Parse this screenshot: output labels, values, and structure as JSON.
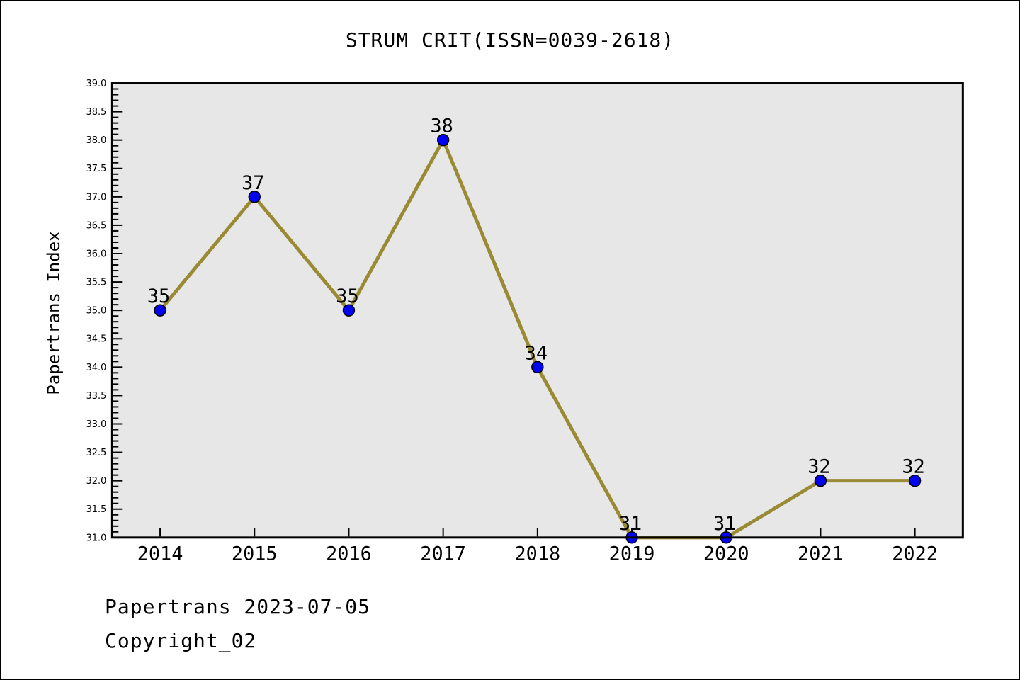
{
  "title": "STRUM CRIT(ISSN=0039-2618)",
  "footer": {
    "line1": "Papertrans 2023-07-05",
    "line2": "Copyright_02"
  },
  "chart_data": {
    "type": "line",
    "title": "STRUM CRIT(ISSN=0039-2618)",
    "xlabel": "",
    "ylabel": "Papertrans Index",
    "categories": [
      "2014",
      "2015",
      "2016",
      "2017",
      "2018",
      "2019",
      "2020",
      "2021",
      "2022"
    ],
    "series": [
      {
        "name": "Papertrans Index",
        "values": [
          35,
          37,
          35,
          38,
          34,
          31,
          31,
          32,
          32
        ]
      }
    ],
    "point_labels": [
      "35",
      "37",
      "35",
      "38",
      "34",
      "31",
      "31",
      "32",
      "32"
    ],
    "ylim": [
      31.0,
      39.0
    ],
    "ytick_step": 0.5,
    "ytick_minor_step": 0.1,
    "ytick_format_decimals": 1,
    "grid": false,
    "legend": "none",
    "colors": {
      "line": "#9A8A33",
      "marker_fill": "#0202F0",
      "marker_edge": "#000000",
      "plot_background": "#E7E7E7",
      "frame": "#000000",
      "text": "#000000"
    }
  }
}
